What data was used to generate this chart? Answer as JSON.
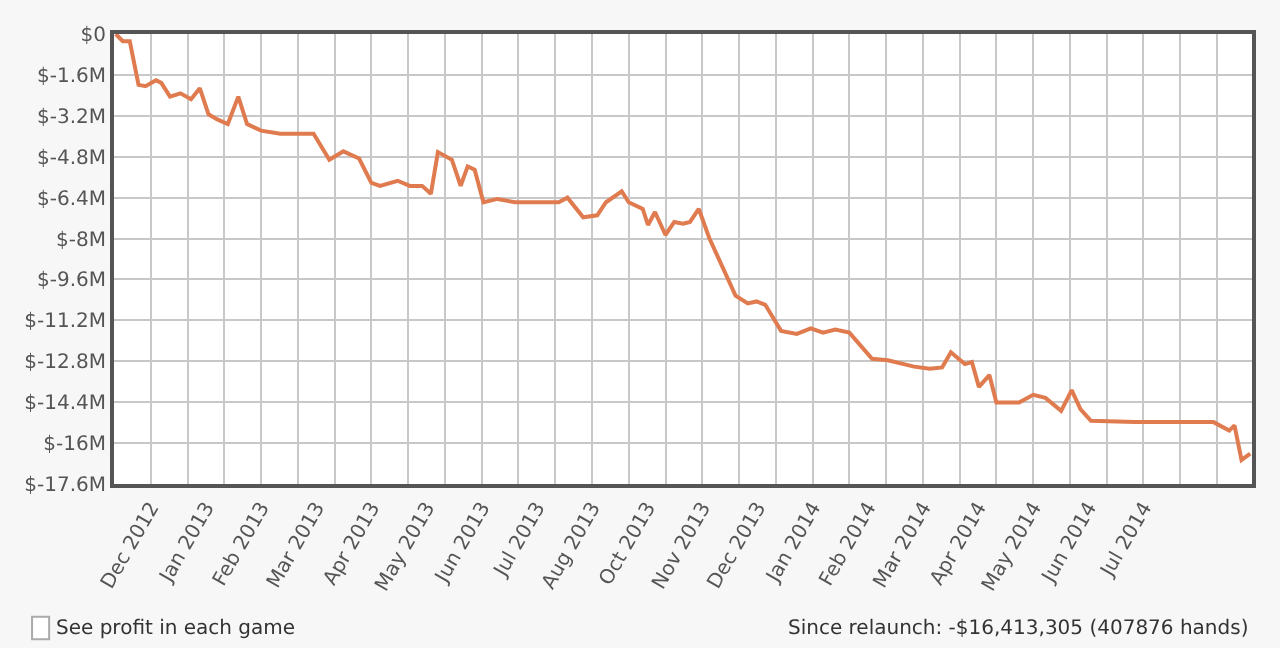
{
  "chart_data": {
    "type": "line",
    "x": [
      "2012-12-02",
      "2012-12-06",
      "2012-12-10",
      "2012-12-15",
      "2012-12-19",
      "2012-12-25",
      "2012-12-28",
      "2013-01-02",
      "2013-01-08",
      "2013-01-14",
      "2013-01-19",
      "2013-01-24",
      "2013-01-29",
      "2013-02-04",
      "2013-02-10",
      "2013-02-15",
      "2013-02-23",
      "2013-03-06",
      "2013-03-25",
      "2013-04-03",
      "2013-04-11",
      "2013-04-20",
      "2013-04-27",
      "2013-05-02",
      "2013-05-12",
      "2013-05-19",
      "2013-05-26",
      "2013-05-31",
      "2013-06-04",
      "2013-06-12",
      "2013-06-17",
      "2013-06-21",
      "2013-06-25",
      "2013-06-30",
      "2013-07-08",
      "2013-07-18",
      "2013-08-12",
      "2013-08-17",
      "2013-08-26",
      "2013-09-03",
      "2013-09-08",
      "2013-09-17",
      "2013-09-21",
      "2013-09-29",
      "2013-10-02",
      "2013-10-06",
      "2013-10-12",
      "2013-10-17",
      "2013-10-22",
      "2013-10-26",
      "2013-10-31",
      "2013-11-06",
      "2013-11-21",
      "2013-11-28",
      "2013-12-03",
      "2013-12-08",
      "2013-12-17",
      "2013-12-26",
      "2014-01-03",
      "2014-01-10",
      "2014-01-17",
      "2014-01-25",
      "2014-02-07",
      "2014-02-16",
      "2014-03-03",
      "2014-03-12",
      "2014-03-19",
      "2014-03-24",
      "2014-04-01",
      "2014-04-05",
      "2014-04-09",
      "2014-04-15",
      "2014-04-19",
      "2014-05-02",
      "2014-05-10",
      "2014-05-17",
      "2014-05-26",
      "2014-06-01",
      "2014-06-06",
      "2014-06-12",
      "2014-07-07",
      "2014-08-11",
      "2014-08-21",
      "2014-08-30",
      "2014-09-02",
      "2014-09-06",
      "2014-09-11"
    ],
    "series": [
      {
        "color": "#e07b4f",
        "values": [
          0,
          -0.28,
          -0.28,
          -1.99,
          -2.04,
          -1.81,
          -1.91,
          -2.45,
          -2.32,
          -2.55,
          -2.12,
          -3.14,
          -3.34,
          -3.52,
          -2.45,
          -3.52,
          -3.78,
          -3.9,
          -3.9,
          -4.92,
          -4.59,
          -4.87,
          -5.82,
          -5.94,
          -5.74,
          -5.94,
          -5.94,
          -6.25,
          -4.62,
          -4.92,
          -5.94,
          -5.18,
          -5.31,
          -6.58,
          -6.45,
          -6.58,
          -6.58,
          -6.4,
          -7.17,
          -7.09,
          -6.58,
          -6.15,
          -6.58,
          -6.84,
          -7.47,
          -6.96,
          -7.86,
          -7.35,
          -7.42,
          -7.35,
          -6.84,
          -7.98,
          -10.23,
          -10.54,
          -10.46,
          -10.59,
          -11.61,
          -11.73,
          -11.51,
          -11.68,
          -11.56,
          -11.68,
          -12.7,
          -12.76,
          -13.01,
          -13.09,
          -13.04,
          -12.45,
          -12.91,
          -12.83,
          -13.8,
          -13.34,
          -14.41,
          -14.41,
          -14.11,
          -14.23,
          -14.74,
          -13.93,
          -14.67,
          -15.13,
          -15.18,
          -15.18,
          -15.18,
          -15.51,
          -15.31,
          -16.66,
          -16.41
        ]
      }
    ],
    "xlim": [
      "2012-12-01",
      "2014-09-12"
    ],
    "xticks": [
      {
        "value": "2012-12-22",
        "label": "Dec 2012"
      },
      {
        "value": "2013-01-22T12:00",
        "label": "Jan 2013"
      },
      {
        "value": "2013-02-23",
        "label": "Feb 2013"
      },
      {
        "value": "2013-03-26T12:00",
        "label": "Mar 2013"
      },
      {
        "value": "2013-04-27",
        "label": "Apr 2013"
      },
      {
        "value": "2013-05-28T12:00",
        "label": "May 2013"
      },
      {
        "value": "2013-06-29",
        "label": "Jun 2013"
      },
      {
        "value": "2013-07-30T12:00",
        "label": "Jul 2013"
      },
      {
        "value": "2013-08-31",
        "label": "Aug 2013"
      },
      {
        "value": "2013-10-01T12:00",
        "label": "Oct 2013"
      },
      {
        "value": "2013-11-02",
        "label": "Nov 2013"
      },
      {
        "value": "2013-12-03T12:00",
        "label": "Dec 2013"
      },
      {
        "value": "2014-01-04",
        "label": "Jan 2014"
      },
      {
        "value": "2014-02-04T12:00",
        "label": "Feb 2014"
      },
      {
        "value": "2014-03-08",
        "label": "Mar 2014"
      },
      {
        "value": "2014-04-08T12:00",
        "label": "Apr 2014"
      },
      {
        "value": "2014-05-10",
        "label": "May 2014"
      },
      {
        "value": "2014-06-10T12:00",
        "label": "Jun 2014"
      },
      {
        "value": "2014-07-12",
        "label": "Jul 2014"
      },
      {
        "value": "2012-12-22",
        "label": null
      },
      {
        "value": "2013-01-12",
        "label": null
      },
      {
        "value": "2013-02-02",
        "label": null
      },
      {
        "value": "2013-02-23",
        "label": null
      },
      {
        "value": "2013-03-16",
        "label": null
      },
      {
        "value": "2013-04-06",
        "label": null
      },
      {
        "value": "2013-04-27",
        "label": null
      },
      {
        "value": "2013-05-18",
        "label": null
      },
      {
        "value": "2013-06-08",
        "label": null
      },
      {
        "value": "2013-06-29",
        "label": null
      },
      {
        "value": "2013-07-20",
        "label": null
      },
      {
        "value": "2013-08-10",
        "label": null
      },
      {
        "value": "2013-08-31",
        "label": null
      },
      {
        "value": "2013-09-21",
        "label": null
      },
      {
        "value": "2013-10-12",
        "label": null
      },
      {
        "value": "2013-11-02",
        "label": null
      },
      {
        "value": "2013-11-23",
        "label": null
      },
      {
        "value": "2013-12-14",
        "label": null
      },
      {
        "value": "2014-01-04",
        "label": null
      },
      {
        "value": "2014-01-25",
        "label": null
      },
      {
        "value": "2014-02-15",
        "label": null
      },
      {
        "value": "2014-03-08",
        "label": null
      },
      {
        "value": "2014-03-29",
        "label": null
      },
      {
        "value": "2014-04-19",
        "label": null
      },
      {
        "value": "2014-05-10",
        "label": null
      },
      {
        "value": "2014-05-31",
        "label": null
      },
      {
        "value": "2014-06-21",
        "label": null
      },
      {
        "value": "2014-07-12",
        "label": null
      },
      {
        "value": "2014-08-02",
        "label": null
      },
      {
        "value": "2014-08-23",
        "label": null
      }
    ],
    "ylim": [
      -17.6,
      0
    ],
    "yticks": [
      {
        "value": 0,
        "label": "$0"
      },
      {
        "value": -1.6,
        "label": "$-1.6M"
      },
      {
        "value": -3.2,
        "label": "$-3.2M"
      },
      {
        "value": -4.8,
        "label": "$-4.8M"
      },
      {
        "value": -6.4,
        "label": "$-6.4M"
      },
      {
        "value": -8,
        "label": "$-8M"
      },
      {
        "value": -9.6,
        "label": "$-9.6M"
      },
      {
        "value": -11.2,
        "label": "$-11.2M"
      },
      {
        "value": -12.8,
        "label": "$-12.8M"
      },
      {
        "value": -14.4,
        "label": "$-14.4M"
      },
      {
        "value": -16,
        "label": "$-16M"
      },
      {
        "value": -17.6,
        "label": "$-17.6M"
      }
    ],
    "grid": true,
    "legend": false,
    "annotations": [
      "See profit in each game",
      "Since relaunch: -$16,413,305 (407876 hands)"
    ]
  }
}
